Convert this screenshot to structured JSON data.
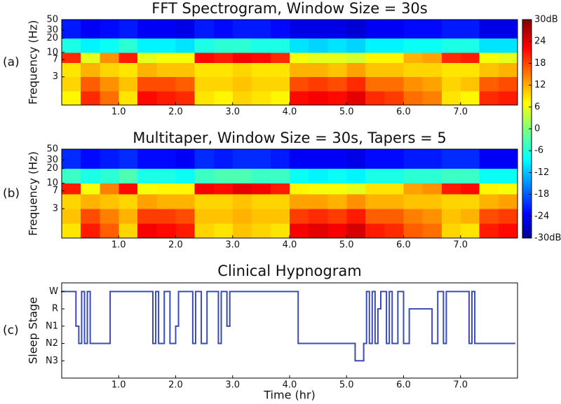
{
  "chart_data": [
    {
      "type": "heatmap",
      "title": "FFT Spectrogram, Window Size = 30s",
      "panel_label": "(a)",
      "ylabel": "Frequency (Hz)",
      "log_y": true,
      "colormap": "jet",
      "xlim": [
        0,
        8
      ],
      "ylim": [
        0.75,
        50
      ],
      "xticks": [
        {
          "value": 1,
          "label": "1.0"
        },
        {
          "value": 2,
          "label": "2.0"
        },
        {
          "value": 3,
          "label": "3.0"
        },
        {
          "value": 4,
          "label": "4.0"
        },
        {
          "value": 5,
          "label": "5.0"
        },
        {
          "value": 6,
          "label": "6.0"
        },
        {
          "value": 7,
          "label": "7.0"
        }
      ],
      "yticks": [
        3,
        7,
        10,
        20,
        30,
        50
      ],
      "x_edges": [
        0,
        0.33,
        0.67,
        1,
        1.33,
        1.67,
        2,
        2.33,
        2.67,
        3,
        3.33,
        3.67,
        4,
        4.33,
        4.67,
        5,
        5.33,
        5.67,
        6,
        6.33,
        6.67,
        7,
        7.33,
        7.67,
        8
      ],
      "y_edges": [
        0.75,
        1.5,
        3,
        6,
        10,
        20,
        50
      ],
      "z": [
        [
          8,
          20,
          16,
          9,
          22,
          21,
          20,
          9,
          8,
          10,
          9,
          8,
          22,
          23,
          22,
          24,
          20,
          19,
          16,
          15,
          9,
          8,
          20,
          21
        ],
        [
          10,
          17,
          14,
          11,
          18,
          18,
          17,
          10,
          10,
          11,
          10,
          10,
          18,
          19,
          18,
          20,
          16,
          16,
          14,
          13,
          10,
          11,
          17,
          18
        ],
        [
          9,
          12,
          10,
          9,
          12,
          11,
          11,
          9,
          9,
          10,
          9,
          9,
          12,
          12,
          11,
          13,
          11,
          11,
          10,
          10,
          9,
          9,
          11,
          12
        ],
        [
          20,
          6,
          14,
          21,
          6,
          7,
          7,
          22,
          21,
          23,
          22,
          20,
          7,
          6,
          6,
          5,
          8,
          8,
          12,
          13,
          20,
          21,
          7,
          6
        ],
        [
          -6,
          -8,
          -7,
          -5,
          -8,
          -8,
          -9,
          -6,
          -5,
          -5,
          -6,
          -6,
          -9,
          -10,
          -9,
          -10,
          -8,
          -8,
          -7,
          -7,
          -6,
          -6,
          -9,
          -9
        ],
        [
          -21,
          -23,
          -22,
          -21,
          -23,
          -23,
          -24,
          -21,
          -22,
          -21,
          -21,
          -22,
          -24,
          -24,
          -24,
          -25,
          -23,
          -23,
          -22,
          -22,
          -21,
          -21,
          -24,
          -24
        ]
      ],
      "colorbar": {
        "clim": [
          -30,
          30
        ],
        "ticks": [
          {
            "value": 30,
            "label": "30dB"
          },
          24,
          18,
          12,
          6,
          0,
          -6,
          -12,
          -18,
          -24,
          {
            "value": -30,
            "label": "-30dB"
          }
        ]
      }
    },
    {
      "type": "heatmap",
      "title": "Multitaper, Window Size = 30s, Tapers = 5",
      "panel_label": "(b)",
      "ylabel": "Frequency (Hz)",
      "log_y": true,
      "colormap": "jet",
      "xlim": [
        0,
        8
      ],
      "ylim": [
        0.75,
        50
      ],
      "xticks": [
        {
          "value": 1,
          "label": "1.0"
        },
        {
          "value": 2,
          "label": "2.0"
        },
        {
          "value": 3,
          "label": "3.0"
        },
        {
          "value": 4,
          "label": "4.0"
        },
        {
          "value": 5,
          "label": "5.0"
        },
        {
          "value": 6,
          "label": "6.0"
        },
        {
          "value": 7,
          "label": "7.0"
        }
      ],
      "yticks": [
        3,
        7,
        10,
        20,
        30,
        50
      ],
      "x_edges": [
        0,
        0.33,
        0.67,
        1,
        1.33,
        1.67,
        2,
        2.33,
        2.67,
        3,
        3.33,
        3.67,
        4,
        4.33,
        4.67,
        5,
        5.33,
        5.67,
        6,
        6.33,
        6.67,
        7,
        7.33,
        7.67,
        8
      ],
      "y_edges": [
        0.75,
        1.5,
        3,
        6,
        10,
        20,
        50
      ],
      "z": [
        [
          9,
          21,
          17,
          10,
          23,
          22,
          21,
          10,
          9,
          11,
          10,
          9,
          23,
          24,
          23,
          25,
          21,
          20,
          17,
          16,
          10,
          9,
          21,
          22
        ],
        [
          11,
          18,
          15,
          12,
          19,
          19,
          18,
          11,
          11,
          12,
          11,
          11,
          19,
          20,
          19,
          21,
          17,
          17,
          15,
          14,
          11,
          12,
          18,
          19
        ],
        [
          10,
          12,
          11,
          10,
          13,
          12,
          12,
          10,
          10,
          11,
          10,
          10,
          13,
          13,
          12,
          14,
          12,
          12,
          11,
          11,
          10,
          10,
          12,
          13
        ],
        [
          21,
          7,
          15,
          22,
          7,
          8,
          8,
          23,
          22,
          24,
          23,
          21,
          8,
          7,
          7,
          6,
          9,
          9,
          13,
          14,
          21,
          22,
          8,
          7
        ],
        [
          -4,
          -6,
          -5,
          -3,
          -6,
          -6,
          -7,
          -4,
          -3,
          -3,
          -4,
          -4,
          -7,
          -8,
          -7,
          -8,
          -6,
          -6,
          -5,
          -5,
          -4,
          -4,
          -7,
          -7
        ],
        [
          -20,
          -22,
          -21,
          -20,
          -22,
          -22,
          -23,
          -20,
          -21,
          -20,
          -20,
          -21,
          -23,
          -23,
          -23,
          -24,
          -22,
          -22,
          -21,
          -21,
          -20,
          -20,
          -23,
          -23
        ]
      ]
    },
    {
      "type": "step",
      "title": "Clinical Hypnogram",
      "panel_label": "(c)",
      "ylabel": "Sleep Stage",
      "xlabel": "Time (hr)",
      "color": "#3a4cb0",
      "xlim": [
        0,
        8
      ],
      "ylim": [
        -1,
        4.5
      ],
      "xticks": [
        {
          "value": 1,
          "label": "1.0"
        },
        {
          "value": 2,
          "label": "2.0"
        },
        {
          "value": 3,
          "label": "3.0"
        },
        {
          "value": 4,
          "label": "4.0"
        },
        {
          "value": 5,
          "label": "5.0"
        },
        {
          "value": 6,
          "label": "6.0"
        },
        {
          "value": 7,
          "label": "7.0"
        }
      ],
      "yticks": [
        {
          "value": 4,
          "label": "W"
        },
        {
          "value": 3,
          "label": "R"
        },
        {
          "value": 2,
          "label": "N1"
        },
        {
          "value": 1,
          "label": "N2"
        },
        {
          "value": 0,
          "label": "N3"
        }
      ],
      "x": [
        0,
        0.25,
        0.3,
        0.35,
        0.4,
        0.45,
        0.5,
        0.85,
        1.6,
        1.65,
        1.7,
        1.8,
        1.9,
        2.0,
        2.05,
        2.3,
        2.35,
        2.45,
        2.55,
        2.75,
        2.8,
        2.9,
        2.95,
        4.15,
        5.15,
        5.3,
        5.35,
        5.4,
        5.45,
        5.5,
        5.55,
        5.6,
        5.7,
        5.75,
        5.8,
        5.9,
        6.0,
        6.1,
        6.5,
        6.6,
        6.7,
        6.75,
        7.15,
        7.2,
        7.25,
        7.95
      ],
      "values": [
        4,
        2,
        1,
        4,
        1,
        4,
        1,
        4,
        1,
        4,
        1,
        4,
        1,
        2,
        4,
        1,
        4,
        1,
        4,
        1,
        4,
        2,
        4,
        1,
        0,
        1,
        4,
        1,
        4,
        1,
        3,
        4,
        1,
        4,
        1,
        4,
        1,
        3,
        1,
        4,
        1,
        4,
        1,
        4,
        1,
        1
      ]
    }
  ]
}
